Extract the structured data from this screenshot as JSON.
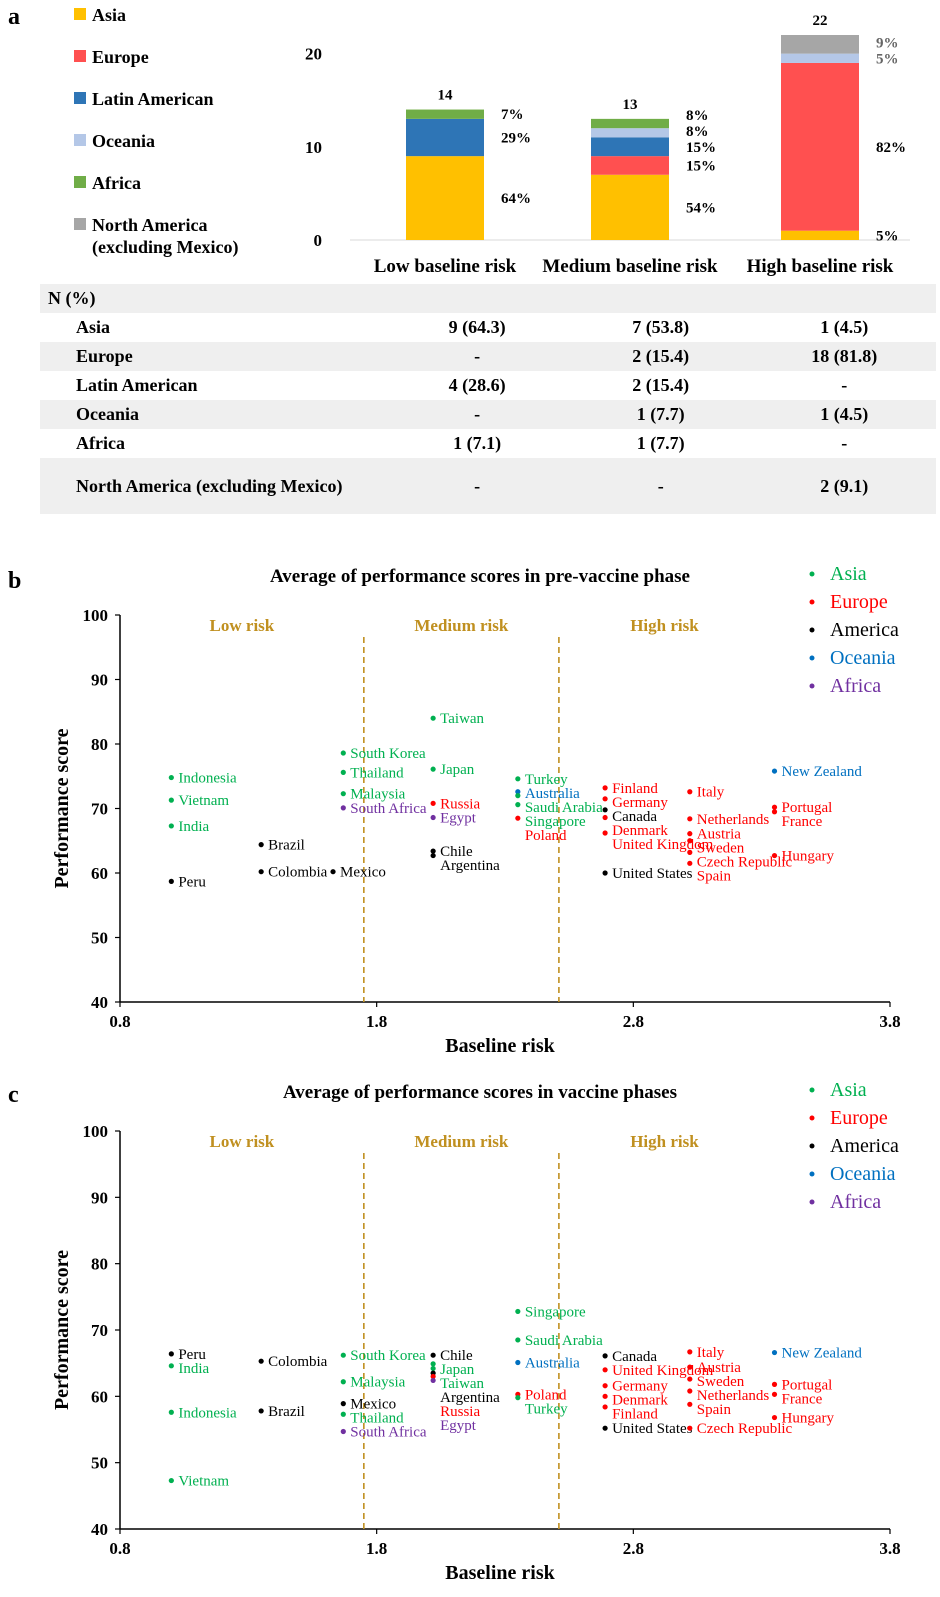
{
  "panel_a": {
    "letter": "a",
    "legend": [
      {
        "label": "Asia",
        "color": "#FFC000"
      },
      {
        "label": "Europe",
        "color": "#FF5050"
      },
      {
        "label": "Latin American",
        "color": "#2E75B6"
      },
      {
        "label": "Oceania",
        "color": "#B4C7E7"
      },
      {
        "label": "Africa",
        "color": "#70AD47"
      },
      {
        "label": "North America\n(excluding Mexico)",
        "color": "#A6A6A6"
      }
    ],
    "table": {
      "header": "N (%)",
      "rows": [
        {
          "label": "Asia",
          "values": [
            "9 (64.3)",
            "7 (53.8)",
            "1 (4.5)"
          ]
        },
        {
          "label": "Europe",
          "values": [
            "-",
            "2 (15.4)",
            "18 (81.8)"
          ]
        },
        {
          "label": "Latin American",
          "values": [
            "4 (28.6)",
            "2 (15.4)",
            "-"
          ]
        },
        {
          "label": "Oceania",
          "values": [
            "-",
            "1 (7.7)",
            "1 (4.5)"
          ]
        },
        {
          "label": "Africa",
          "values": [
            "1 (7.1)",
            "1 (7.7)",
            "-"
          ]
        },
        {
          "label": "North America (excluding Mexico)",
          "values": [
            "-",
            "-",
            "2 (9.1)"
          ]
        }
      ]
    }
  },
  "panel_b": {
    "letter": "b"
  },
  "panel_c": {
    "letter": "c"
  },
  "chart_data": [
    {
      "type": "bar",
      "stacked": true,
      "categories": [
        "Low baseline risk",
        "Medium baseline risk",
        "High baseline risk"
      ],
      "ylim": [
        0,
        22
      ],
      "yticks": [
        0,
        10,
        20
      ],
      "totals": [
        "14",
        "13",
        "22"
      ],
      "series": [
        {
          "name": "Asia",
          "color": "#FFC000",
          "values": [
            9,
            7,
            1
          ]
        },
        {
          "name": "Europe",
          "color": "#FF5050",
          "values": [
            0,
            2,
            18
          ]
        },
        {
          "name": "Latin American",
          "color": "#2E75B6",
          "values": [
            4,
            2,
            0
          ]
        },
        {
          "name": "Oceania",
          "color": "#B4C7E7",
          "values": [
            0,
            1,
            1
          ]
        },
        {
          "name": "Africa",
          "color": "#70AD47",
          "values": [
            1,
            1,
            0
          ]
        },
        {
          "name": "North America (excluding Mexico)",
          "color": "#A6A6A6",
          "values": [
            0,
            0,
            2
          ]
        }
      ],
      "pct_labels": [
        [
          "64%",
          null,
          "29%",
          null,
          "7%",
          null
        ],
        [
          "54%",
          "15%",
          "15%",
          "8%",
          "8%",
          null
        ],
        [
          "5%",
          "82%",
          null,
          "5%",
          null,
          "9%"
        ]
      ]
    },
    {
      "type": "scatter",
      "title": "Average of performance scores in pre-vaccine phase",
      "xlabel": "Baseline risk",
      "ylabel": "Performance score",
      "xlim": [
        0.8,
        3.8
      ],
      "ylim": [
        40,
        100
      ],
      "xticks": [
        "0.8",
        "1.8",
        "2.8",
        "3.8"
      ],
      "yticks": [
        "40",
        "50",
        "60",
        "70",
        "80",
        "90",
        "100"
      ],
      "regions": [
        "Low risk",
        "Medium risk",
        "High risk"
      ],
      "region_color": "#C09020",
      "thresholds": [
        1.75,
        2.51
      ],
      "legend": [
        {
          "name": "Asia",
          "color": "#00B050"
        },
        {
          "name": "Europe",
          "color": "#FF0000"
        },
        {
          "name": "America",
          "color": "#000000"
        },
        {
          "name": "Oceania",
          "color": "#0070C0"
        },
        {
          "name": "Africa",
          "color": "#7030A0"
        }
      ],
      "points": [
        {
          "label": "Indonesia",
          "x": 1.0,
          "y": 74.8,
          "group": "Asia"
        },
        {
          "label": "Vietnam",
          "x": 1.0,
          "y": 71.3,
          "group": "Asia"
        },
        {
          "label": "India",
          "x": 1.0,
          "y": 67.3,
          "group": "Asia"
        },
        {
          "label": "Peru",
          "x": 1.0,
          "y": 58.7,
          "group": "America"
        },
        {
          "label": "Brazil",
          "x": 1.35,
          "y": 64.4,
          "group": "America"
        },
        {
          "label": "Colombia",
          "x": 1.35,
          "y": 60.2,
          "group": "America"
        },
        {
          "label": "Mexico",
          "x": 1.63,
          "y": 60.2,
          "group": "America"
        },
        {
          "label": "South Korea",
          "x": 1.67,
          "y": 78.6,
          "group": "Asia"
        },
        {
          "label": "Thailand",
          "x": 1.67,
          "y": 75.6,
          "group": "Asia"
        },
        {
          "label": "Malaysia",
          "x": 1.67,
          "y": 72.3,
          "group": "Asia"
        },
        {
          "label": "South Africa",
          "x": 1.67,
          "y": 70.1,
          "group": "Africa"
        },
        {
          "label": "Taiwan",
          "x": 2.02,
          "y": 84.0,
          "group": "Asia"
        },
        {
          "label": "Japan",
          "x": 2.02,
          "y": 76.1,
          "group": "Asia"
        },
        {
          "label": "Russia",
          "x": 2.02,
          "y": 70.8,
          "group": "Europe"
        },
        {
          "label": "Egypt",
          "x": 2.02,
          "y": 68.6,
          "group": "Africa"
        },
        {
          "label": "Chile",
          "x": 2.02,
          "y": 63.4,
          "group": "America"
        },
        {
          "label": "Argentina",
          "x": 2.02,
          "y": 62.7,
          "group": "America"
        },
        {
          "label": "Turkey",
          "x": 2.35,
          "y": 74.6,
          "group": "Asia"
        },
        {
          "label": "Australia",
          "x": 2.35,
          "y": 72.6,
          "group": "Oceania"
        },
        {
          "label": "Saudi Arabia",
          "x": 2.35,
          "y": 72.0,
          "group": "Asia"
        },
        {
          "label": "Singapore",
          "x": 2.35,
          "y": 70.6,
          "group": "Asia"
        },
        {
          "label": "Poland",
          "x": 2.35,
          "y": 68.5,
          "group": "Europe"
        },
        {
          "label": "Finland",
          "x": 2.69,
          "y": 73.2,
          "group": "Europe"
        },
        {
          "label": "Germany",
          "x": 2.69,
          "y": 71.5,
          "group": "Europe"
        },
        {
          "label": "Canada",
          "x": 2.69,
          "y": 69.8,
          "group": "America"
        },
        {
          "label": "Denmark",
          "x": 2.69,
          "y": 68.6,
          "group": "Europe"
        },
        {
          "label": "United Kingdom",
          "x": 2.69,
          "y": 66.2,
          "group": "Europe"
        },
        {
          "label": "United States",
          "x": 2.69,
          "y": 60.0,
          "group": "America"
        },
        {
          "label": "Italy",
          "x": 3.02,
          "y": 72.6,
          "group": "Europe"
        },
        {
          "label": "Netherlands",
          "x": 3.02,
          "y": 68.4,
          "group": "Europe"
        },
        {
          "label": "Austria",
          "x": 3.02,
          "y": 66.1,
          "group": "Europe"
        },
        {
          "label": "Sweden",
          "x": 3.02,
          "y": 65.0,
          "group": "Europe"
        },
        {
          "label": "Czech Republic",
          "x": 3.02,
          "y": 63.2,
          "group": "Europe"
        },
        {
          "label": "Spain",
          "x": 3.02,
          "y": 61.5,
          "group": "Europe"
        },
        {
          "label": "New Zealand",
          "x": 3.35,
          "y": 75.8,
          "group": "Oceania"
        },
        {
          "label": "Portugal",
          "x": 3.35,
          "y": 70.2,
          "group": "Europe"
        },
        {
          "label": "France",
          "x": 3.35,
          "y": 69.5,
          "group": "Europe"
        },
        {
          "label": "Hungary",
          "x": 3.35,
          "y": 62.7,
          "group": "Europe"
        }
      ]
    },
    {
      "type": "scatter",
      "title": "Average of performance scores in vaccine phases",
      "xlabel": "Baseline risk",
      "ylabel": "Performance score",
      "xlim": [
        0.8,
        3.8
      ],
      "ylim": [
        40,
        100
      ],
      "xticks": [
        "0.8",
        "1.8",
        "2.8",
        "3.8"
      ],
      "yticks": [
        "40",
        "50",
        "60",
        "70",
        "80",
        "90",
        "100"
      ],
      "regions": [
        "Low risk",
        "Medium risk",
        "High risk"
      ],
      "region_color": "#C09020",
      "thresholds": [
        1.75,
        2.51
      ],
      "legend": [
        {
          "name": "Asia",
          "color": "#00B050"
        },
        {
          "name": "Europe",
          "color": "#FF0000"
        },
        {
          "name": "America",
          "color": "#000000"
        },
        {
          "name": "Oceania",
          "color": "#0070C0"
        },
        {
          "name": "Africa",
          "color": "#7030A0"
        }
      ],
      "points": [
        {
          "label": "Peru",
          "x": 1.0,
          "y": 66.4,
          "group": "America"
        },
        {
          "label": "India",
          "x": 1.0,
          "y": 64.6,
          "group": "Asia"
        },
        {
          "label": "Indonesia",
          "x": 1.0,
          "y": 57.6,
          "group": "Asia"
        },
        {
          "label": "Vietnam",
          "x": 1.0,
          "y": 47.3,
          "group": "Asia"
        },
        {
          "label": "Colombia",
          "x": 1.35,
          "y": 65.3,
          "group": "America"
        },
        {
          "label": "Brazil",
          "x": 1.35,
          "y": 57.8,
          "group": "America"
        },
        {
          "label": "South Korea",
          "x": 1.67,
          "y": 66.2,
          "group": "Asia"
        },
        {
          "label": "Malaysia",
          "x": 1.67,
          "y": 62.2,
          "group": "Asia"
        },
        {
          "label": "Mexico",
          "x": 1.67,
          "y": 58.9,
          "group": "America"
        },
        {
          "label": "Thailand",
          "x": 1.67,
          "y": 57.3,
          "group": "Asia"
        },
        {
          "label": "South Africa",
          "x": 1.67,
          "y": 54.7,
          "group": "Africa"
        },
        {
          "label": "Chile",
          "x": 2.02,
          "y": 66.2,
          "group": "America"
        },
        {
          "label": "Japan",
          "x": 2.02,
          "y": 64.9,
          "group": "Asia"
        },
        {
          "label": "Taiwan",
          "x": 2.02,
          "y": 64.2,
          "group": "Asia"
        },
        {
          "label": "Argentina",
          "x": 2.02,
          "y": 63.5,
          "group": "America"
        },
        {
          "label": "Russia",
          "x": 2.02,
          "y": 63.0,
          "group": "Europe"
        },
        {
          "label": "Egypt",
          "x": 2.02,
          "y": 62.4,
          "group": "Africa"
        },
        {
          "label": "Singapore",
          "x": 2.35,
          "y": 72.8,
          "group": "Asia"
        },
        {
          "label": "Saudi Arabia",
          "x": 2.35,
          "y": 68.5,
          "group": "Asia"
        },
        {
          "label": "Australia",
          "x": 2.35,
          "y": 65.1,
          "group": "Oceania"
        },
        {
          "label": "Poland",
          "x": 2.35,
          "y": 60.3,
          "group": "Europe"
        },
        {
          "label": "Turkey",
          "x": 2.35,
          "y": 59.8,
          "group": "Asia"
        },
        {
          "label": "Canada",
          "x": 2.69,
          "y": 66.1,
          "group": "America"
        },
        {
          "label": "United Kingdom",
          "x": 2.69,
          "y": 64.0,
          "group": "Europe"
        },
        {
          "label": "Germany",
          "x": 2.69,
          "y": 61.6,
          "group": "Europe"
        },
        {
          "label": "Denmark",
          "x": 2.69,
          "y": 60.0,
          "group": "Europe"
        },
        {
          "label": "Finland",
          "x": 2.69,
          "y": 58.4,
          "group": "Europe"
        },
        {
          "label": "United States",
          "x": 2.69,
          "y": 55.2,
          "group": "America"
        },
        {
          "label": "Italy",
          "x": 3.02,
          "y": 66.7,
          "group": "Europe"
        },
        {
          "label": "Austria",
          "x": 3.02,
          "y": 64.4,
          "group": "Europe"
        },
        {
          "label": "Sweden",
          "x": 3.02,
          "y": 62.6,
          "group": "Europe"
        },
        {
          "label": "Netherlands",
          "x": 3.02,
          "y": 60.8,
          "group": "Europe"
        },
        {
          "label": "Spain",
          "x": 3.02,
          "y": 58.8,
          "group": "Europe"
        },
        {
          "label": "Czech Republic",
          "x": 3.02,
          "y": 55.2,
          "group": "Europe"
        },
        {
          "label": "New Zealand",
          "x": 3.35,
          "y": 66.6,
          "group": "Oceania"
        },
        {
          "label": "Portugal",
          "x": 3.35,
          "y": 61.8,
          "group": "Europe"
        },
        {
          "label": "France",
          "x": 3.35,
          "y": 60.3,
          "group": "Europe"
        },
        {
          "label": "Hungary",
          "x": 3.35,
          "y": 56.8,
          "group": "Europe"
        }
      ]
    }
  ]
}
